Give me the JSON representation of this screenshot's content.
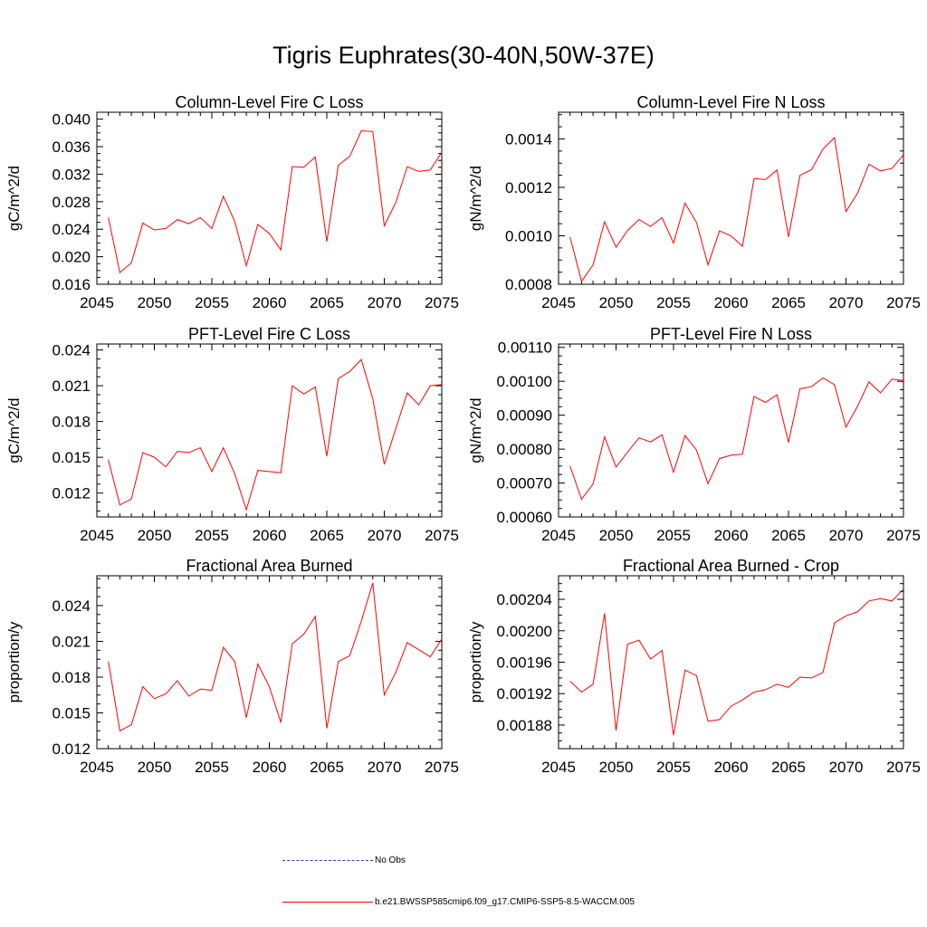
{
  "title": "Tigris Euphrates(30-40N,50W-37E)",
  "colors": {
    "series": "#ff0000",
    "obs": "#3a3aa0"
  },
  "legend": [
    {
      "label": "No Obs",
      "color": "#3a3aa0",
      "style": "dashed"
    },
    {
      "label": "b.e21.BWSSP585cmip6.f09_g17.CMIP6-SSP5-8.5-WACCM.005",
      "color": "#ff0000",
      "style": "solid"
    }
  ],
  "chart_data": [
    {
      "type": "line",
      "title": "Column-Level Fire C Loss",
      "ylabel": "gC/m^2/d",
      "xlim": [
        2045,
        2075
      ],
      "ylim": [
        0.016,
        0.041
      ],
      "xticks": [
        2045,
        2050,
        2055,
        2060,
        2065,
        2070,
        2075
      ],
      "yticks": [
        "0.016",
        "0.020",
        "0.024",
        "0.028",
        "0.032",
        "0.036",
        "0.040"
      ],
      "x": [
        2046,
        2047,
        2048,
        2049,
        2050,
        2051,
        2052,
        2053,
        2054,
        2055,
        2056,
        2057,
        2058,
        2059,
        2060,
        2061,
        2062,
        2063,
        2064,
        2065,
        2066,
        2067,
        2068,
        2069,
        2070,
        2071,
        2072,
        2073,
        2074,
        2075
      ],
      "values": [
        0.0257,
        0.0177,
        0.0191,
        0.0249,
        0.0239,
        0.0241,
        0.0254,
        0.0248,
        0.0257,
        0.0241,
        0.0288,
        0.0251,
        0.0187,
        0.0247,
        0.0234,
        0.021,
        0.0331,
        0.033,
        0.0345,
        0.0222,
        0.0333,
        0.0346,
        0.0383,
        0.0382,
        0.0245,
        0.0279,
        0.0331,
        0.0324,
        0.0326,
        0.0352
      ]
    },
    {
      "type": "line",
      "title": "Column-Level Fire N Loss",
      "ylabel": "gN/m^2/d",
      "xlim": [
        2045,
        2075
      ],
      "ylim": [
        0.0008,
        0.00151
      ],
      "xticks": [
        2045,
        2050,
        2055,
        2060,
        2065,
        2070,
        2075
      ],
      "yticks": [
        "0.0008",
        "0.0010",
        "0.0012",
        "0.0014"
      ],
      "x": [
        2046,
        2047,
        2048,
        2049,
        2050,
        2051,
        2052,
        2053,
        2054,
        2055,
        2056,
        2057,
        2058,
        2059,
        2060,
        2061,
        2062,
        2063,
        2064,
        2065,
        2066,
        2067,
        2068,
        2069,
        2070,
        2071,
        2072,
        2073,
        2074,
        2075
      ],
      "values": [
        0.000995,
        0.000812,
        0.00088,
        0.001058,
        0.000953,
        0.001022,
        0.001067,
        0.001039,
        0.001075,
        0.00097,
        0.001135,
        0.001055,
        0.00088,
        0.00102,
        0.001,
        0.000957,
        0.001236,
        0.001232,
        0.001272,
        0.000995,
        0.00125,
        0.001273,
        0.001358,
        0.001405,
        0.0011,
        0.001175,
        0.001296,
        0.001268,
        0.001278,
        0.001334
      ]
    },
    {
      "type": "line",
      "title": "PFT-Level Fire C Loss",
      "ylabel": "gC/m^2/d",
      "xlim": [
        2045,
        2075
      ],
      "ylim": [
        0.01,
        0.0245
      ],
      "xticks": [
        2045,
        2050,
        2055,
        2060,
        2065,
        2070,
        2075
      ],
      "yticks": [
        "0.012",
        "0.015",
        "0.018",
        "0.021",
        "0.024"
      ],
      "x": [
        2046,
        2047,
        2048,
        2049,
        2050,
        2051,
        2052,
        2053,
        2054,
        2055,
        2056,
        2057,
        2058,
        2059,
        2060,
        2061,
        2062,
        2063,
        2064,
        2065,
        2066,
        2067,
        2068,
        2069,
        2070,
        2071,
        2072,
        2073,
        2074,
        2075
      ],
      "values": [
        0.0148,
        0.011,
        0.0115,
        0.0154,
        0.015,
        0.0142,
        0.0155,
        0.0154,
        0.0158,
        0.0138,
        0.0158,
        0.0136,
        0.0106,
        0.0139,
        0.0138,
        0.0137,
        0.021,
        0.0203,
        0.0209,
        0.0151,
        0.0216,
        0.0222,
        0.0232,
        0.0199,
        0.0144,
        0.0174,
        0.0204,
        0.0194,
        0.021,
        0.0211
      ]
    },
    {
      "type": "line",
      "title": "PFT-Level Fire N Loss",
      "ylabel": "gN/m^2/d",
      "xlim": [
        2045,
        2075
      ],
      "ylim": [
        0.0006,
        0.00111
      ],
      "xticks": [
        2045,
        2050,
        2055,
        2060,
        2065,
        2070,
        2075
      ],
      "yticks": [
        "0.00060",
        "0.00070",
        "0.00080",
        "0.00090",
        "0.00100",
        "0.00110"
      ],
      "x": [
        2046,
        2047,
        2048,
        2049,
        2050,
        2051,
        2052,
        2053,
        2054,
        2055,
        2056,
        2057,
        2058,
        2059,
        2060,
        2061,
        2062,
        2063,
        2064,
        2065,
        2066,
        2067,
        2068,
        2069,
        2070,
        2071,
        2072,
        2073,
        2074,
        2075
      ],
      "values": [
        0.00075,
        0.000652,
        0.000697,
        0.000836,
        0.000747,
        0.000791,
        0.000833,
        0.000821,
        0.000842,
        0.000732,
        0.00084,
        0.000797,
        0.000698,
        0.000772,
        0.000782,
        0.000785,
        0.000955,
        0.000938,
        0.00096,
        0.00082,
        0.000978,
        0.000984,
        0.00101,
        0.00099,
        0.000865,
        0.000926,
        0.000998,
        0.000966,
        0.001006,
        0.001002
      ]
    },
    {
      "type": "line",
      "title": "Fractional Area Burned",
      "ylabel": "proportion/y",
      "xlim": [
        2045,
        2075
      ],
      "ylim": [
        0.012,
        0.0265
      ],
      "xticks": [
        2045,
        2050,
        2055,
        2060,
        2065,
        2070,
        2075
      ],
      "yticks": [
        "0.012",
        "0.015",
        "0.018",
        "0.021",
        "0.024"
      ],
      "x": [
        2046,
        2047,
        2048,
        2049,
        2050,
        2051,
        2052,
        2053,
        2054,
        2055,
        2056,
        2057,
        2058,
        2059,
        2060,
        2061,
        2062,
        2063,
        2064,
        2065,
        2066,
        2067,
        2068,
        2069,
        2070,
        2071,
        2072,
        2073,
        2074,
        2075
      ],
      "values": [
        0.0193,
        0.0135,
        0.014,
        0.0172,
        0.0162,
        0.0166,
        0.0177,
        0.0164,
        0.017,
        0.0169,
        0.0205,
        0.0193,
        0.0146,
        0.0191,
        0.0172,
        0.0142,
        0.0208,
        0.0216,
        0.0231,
        0.0137,
        0.0193,
        0.0198,
        0.0227,
        0.0259,
        0.0165,
        0.0184,
        0.0209,
        0.0203,
        0.0197,
        0.0212
      ]
    },
    {
      "type": "line",
      "title": "Fractional Area Burned - Crop",
      "ylabel": "proportion/y",
      "xlim": [
        2045,
        2075
      ],
      "ylim": [
        0.00185,
        0.00207
      ],
      "xticks": [
        2045,
        2050,
        2055,
        2060,
        2065,
        2070,
        2075
      ],
      "yticks": [
        "0.00188",
        "0.00192",
        "0.00196",
        "0.00200",
        "0.00204"
      ],
      "x": [
        2046,
        2047,
        2048,
        2049,
        2050,
        2051,
        2052,
        2053,
        2054,
        2055,
        2056,
        2057,
        2058,
        2059,
        2060,
        2061,
        2062,
        2063,
        2064,
        2065,
        2066,
        2067,
        2068,
        2069,
        2070,
        2071,
        2072,
        2073,
        2074,
        2075
      ],
      "values": [
        0.001936,
        0.001922,
        0.001932,
        0.002022,
        0.001873,
        0.001983,
        0.001988,
        0.001964,
        0.001975,
        0.001867,
        0.00195,
        0.001943,
        0.001885,
        0.001887,
        0.001904,
        0.001912,
        0.001922,
        0.001925,
        0.001932,
        0.001928,
        0.001941,
        0.00194,
        0.001947,
        0.00201,
        0.002019,
        0.002024,
        0.002038,
        0.002041,
        0.002038,
        0.002053
      ]
    }
  ]
}
